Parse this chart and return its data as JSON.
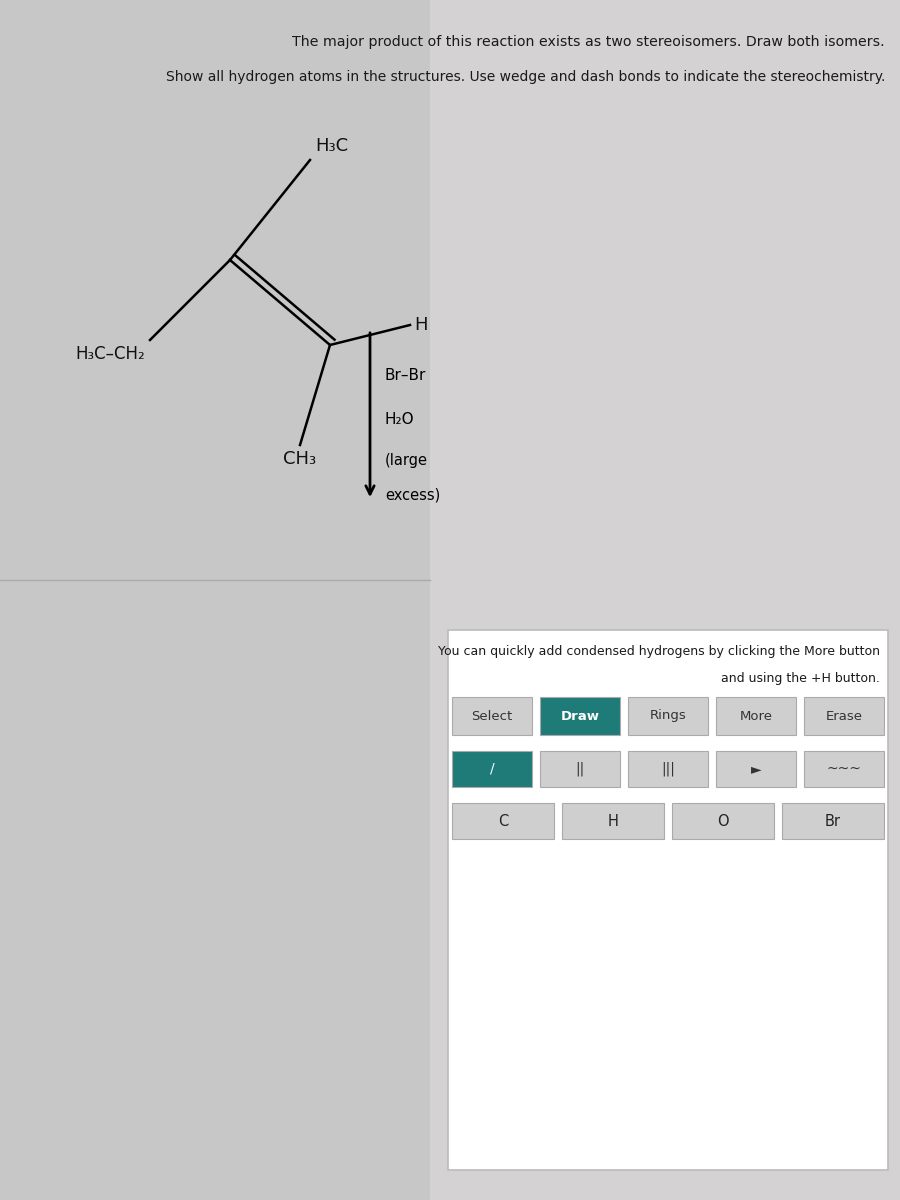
{
  "bg_gray": "#cacaca",
  "bg_right": "#d5d3d3",
  "white_panel": "#ffffff",
  "teal_color": "#1e7b78",
  "toolbar_gray": "#d0cfcf",
  "title_line1": "The major product of this reaction exists as two stereoisomers. Draw both isomers.",
  "title_line2": "Show all hydrogen atoms in the structures. Use wedge and dash bonds to indicate the stereochemistry.",
  "hint_line1": "You can quickly add condensed hydrogens by clicking the More button",
  "hint_line2": "and using the +H button.",
  "toolbar_labels": [
    "Select",
    "Draw",
    "Rings",
    "More",
    "Erase"
  ],
  "atom_labels": [
    "C",
    "H",
    "O",
    "Br"
  ],
  "bond_row1": [
    "/",
    "||",
    "|||",
    "►",
    "~~~"
  ],
  "text_color": "#1a1a1a",
  "mol_text_color": "#111111",
  "border_color": "#aaaaaa",
  "arrow_color": "#111111"
}
